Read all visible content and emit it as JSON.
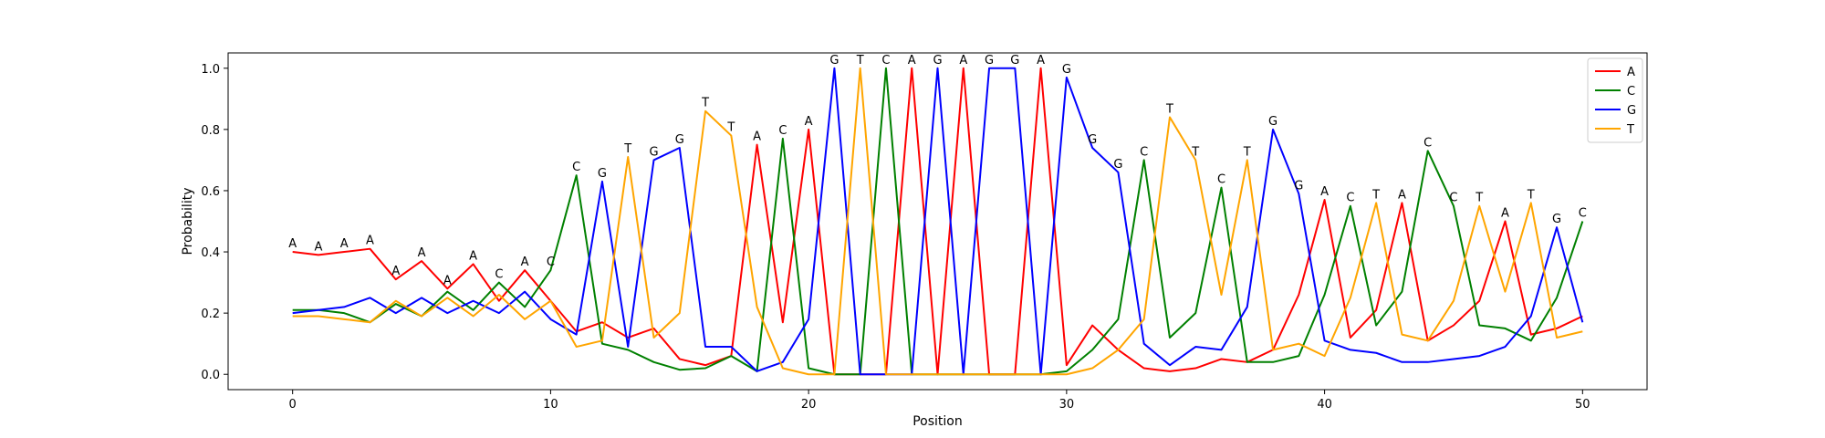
{
  "chart_data": {
    "type": "line",
    "title": "",
    "xlabel": "Position",
    "ylabel": "Probability",
    "xlim": [
      -2.5,
      52.5
    ],
    "ylim": [
      -0.05,
      1.05
    ],
    "xticks": [
      0,
      10,
      20,
      30,
      40,
      50
    ],
    "yticks": [
      0.0,
      0.2,
      0.4,
      0.6,
      0.8,
      1.0
    ],
    "xtick_labels": [
      "0",
      "10",
      "20",
      "30",
      "40",
      "50"
    ],
    "ytick_labels": [
      "0.0",
      "0.2",
      "0.4",
      "0.6",
      "0.8",
      "1.0"
    ],
    "legend_position": "top-right",
    "grid": false,
    "x": [
      0,
      1,
      2,
      3,
      4,
      5,
      6,
      7,
      8,
      9,
      10,
      11,
      12,
      13,
      14,
      15,
      16,
      17,
      18,
      19,
      20,
      21,
      22,
      23,
      24,
      25,
      26,
      27,
      28,
      29,
      30,
      31,
      32,
      33,
      34,
      35,
      36,
      37,
      38,
      39,
      40,
      41,
      42,
      43,
      44,
      45,
      46,
      47,
      48,
      49,
      50
    ],
    "series": [
      {
        "name": "A",
        "color": "#ff0000",
        "values": [
          0.4,
          0.39,
          0.4,
          0.41,
          0.31,
          0.37,
          0.28,
          0.36,
          0.24,
          0.34,
          0.24,
          0.14,
          0.17,
          0.12,
          0.15,
          0.05,
          0.03,
          0.06,
          0.75,
          0.17,
          0.8,
          0.0,
          0.0,
          0.0,
          1.0,
          0.0,
          1.0,
          0.0,
          0.0,
          1.0,
          0.03,
          0.16,
          0.08,
          0.02,
          0.01,
          0.02,
          0.05,
          0.04,
          0.08,
          0.26,
          0.57,
          0.12,
          0.21,
          0.56,
          0.11,
          0.16,
          0.24,
          0.5,
          0.13,
          0.15,
          0.19
        ]
      },
      {
        "name": "C",
        "color": "#008000",
        "values": [
          0.21,
          0.21,
          0.2,
          0.17,
          0.23,
          0.19,
          0.27,
          0.21,
          0.3,
          0.22,
          0.34,
          0.65,
          0.1,
          0.08,
          0.04,
          0.015,
          0.02,
          0.06,
          0.01,
          0.77,
          0.02,
          0.0,
          0.0,
          1.0,
          0.0,
          0.0,
          0.0,
          0.0,
          0.0,
          0.0,
          0.01,
          0.08,
          0.18,
          0.7,
          0.12,
          0.2,
          0.61,
          0.04,
          0.04,
          0.06,
          0.26,
          0.55,
          0.16,
          0.27,
          0.73,
          0.55,
          0.16,
          0.15,
          0.11,
          0.25,
          0.5
        ]
      },
      {
        "name": "G",
        "color": "#0000ff",
        "values": [
          0.2,
          0.21,
          0.22,
          0.25,
          0.2,
          0.25,
          0.2,
          0.24,
          0.2,
          0.27,
          0.18,
          0.13,
          0.63,
          0.09,
          0.7,
          0.74,
          0.09,
          0.09,
          0.01,
          0.04,
          0.18,
          1.0,
          0.0,
          0.0,
          0.0,
          1.0,
          0.0,
          1.0,
          1.0,
          0.0,
          0.97,
          0.74,
          0.66,
          0.1,
          0.03,
          0.09,
          0.08,
          0.22,
          0.8,
          0.59,
          0.11,
          0.08,
          0.07,
          0.04,
          0.04,
          0.05,
          0.06,
          0.09,
          0.19,
          0.48,
          0.17
        ]
      },
      {
        "name": "T",
        "color": "#ffa500",
        "values": [
          0.19,
          0.19,
          0.18,
          0.17,
          0.24,
          0.19,
          0.25,
          0.19,
          0.26,
          0.18,
          0.24,
          0.09,
          0.11,
          0.71,
          0.12,
          0.2,
          0.86,
          0.78,
          0.22,
          0.02,
          0.0,
          0.0,
          1.0,
          0.0,
          0.0,
          0.0,
          0.0,
          0.0,
          0.0,
          0.0,
          0.0,
          0.02,
          0.08,
          0.18,
          0.84,
          0.7,
          0.26,
          0.7,
          0.08,
          0.1,
          0.06,
          0.25,
          0.56,
          0.13,
          0.11,
          0.24,
          0.55,
          0.27,
          0.56,
          0.12,
          0.14
        ]
      }
    ],
    "annotations": [
      "A",
      "A",
      "A",
      "A",
      "A",
      "A",
      "A",
      "A",
      "C",
      "A",
      "C",
      "C",
      "G",
      "T",
      "G",
      "G",
      "T",
      "T",
      "A",
      "C",
      "A",
      "G",
      "T",
      "C",
      "A",
      "G",
      "A",
      "G",
      "G",
      "A",
      "G",
      "G",
      "G",
      "C",
      "T",
      "T",
      "C",
      "T",
      "G",
      "G",
      "A",
      "C",
      "T",
      "A",
      "C",
      "C",
      "T",
      "A",
      "T",
      "G",
      "C"
    ]
  }
}
